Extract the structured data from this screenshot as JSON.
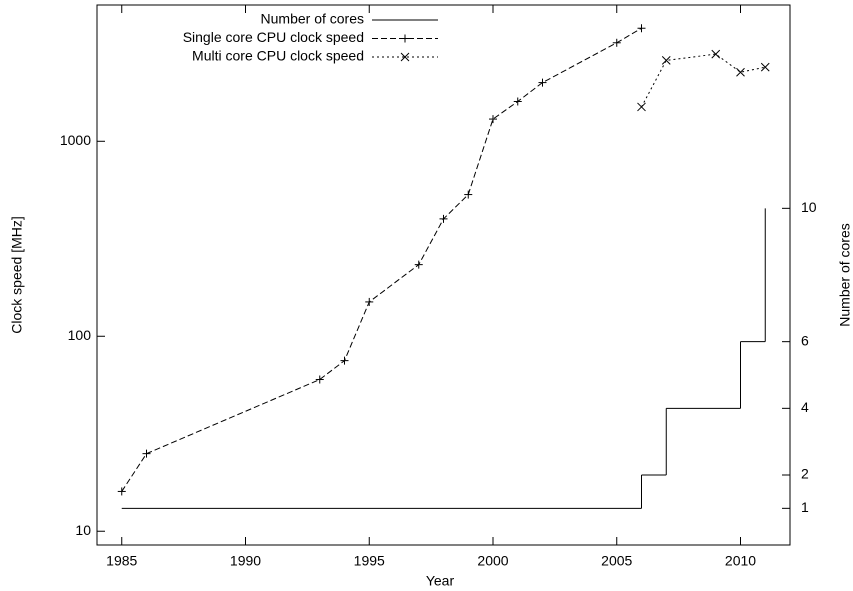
{
  "chart_data": {
    "type": "line",
    "x_label": "Year",
    "y_label": "Clock speed [MHz]",
    "y2_label": "Number of cores",
    "xlim": [
      1984,
      2012
    ],
    "xticks": [
      1985,
      1990,
      1995,
      2000,
      2005,
      2010
    ],
    "ylim": [
      8.5,
      5000
    ],
    "yticks": [
      10,
      100,
      1000
    ],
    "y_scale": "log",
    "y2lim": [
      -0.1,
      16.1
    ],
    "y2ticks": [
      1,
      2,
      4,
      6,
      10
    ],
    "legend": "top",
    "series": [
      {
        "name": "Number of cores",
        "color": "#000000",
        "axis": "y2",
        "style": "steps",
        "x": [
          1985,
          2006,
          2007,
          2010,
          2011
        ],
        "values": [
          1,
          2,
          4,
          6,
          10
        ]
      },
      {
        "name": "Single core CPU clock speed",
        "color": "#000000",
        "style": "dashed",
        "marker": "plus",
        "x": [
          1985,
          1986,
          1993,
          1994,
          1995,
          1997,
          1998,
          1999,
          2000,
          2001,
          2002,
          2005,
          2006
        ],
        "values": [
          16,
          25,
          60,
          75,
          150,
          233,
          400,
          533,
          1300,
          1600,
          2000,
          3200,
          3800
        ]
      },
      {
        "name": "Multi core CPU clock speed",
        "color": "#000000",
        "style": "dotted",
        "marker": "cross",
        "x": [
          2006,
          2007,
          2009,
          2010,
          2011
        ],
        "values": [
          1500,
          2600,
          2800,
          2260,
          2400
        ]
      }
    ]
  }
}
